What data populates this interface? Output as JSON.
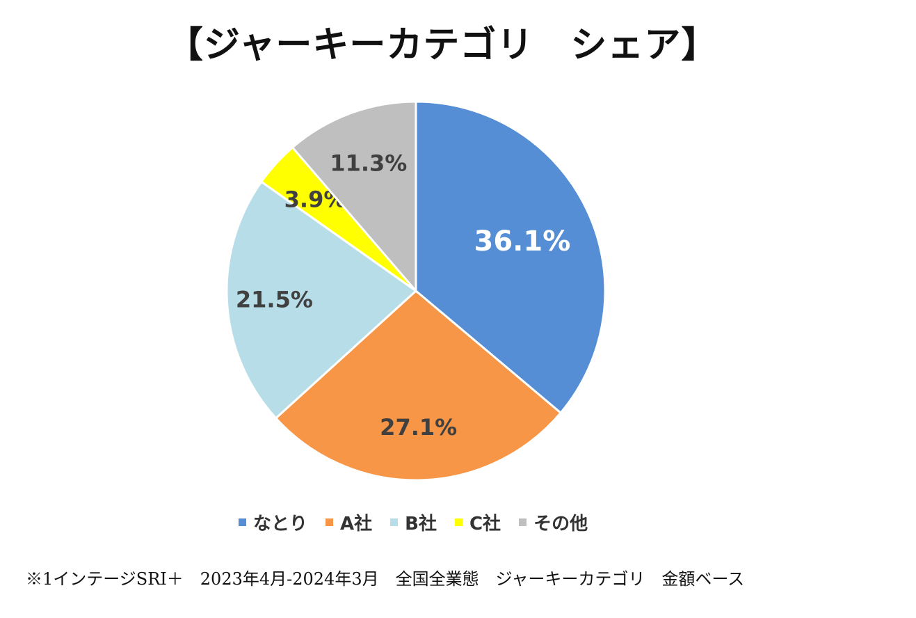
{
  "title": "【ジャーキーカテゴリ　シェア】",
  "footnote": "※1インテージSRI＋　2023年4月-2024年3月　全国全業態　ジャーキーカテゴリ　金額ベース",
  "chart_data": {
    "type": "pie",
    "title": "【ジャーキーカテゴリ　シェア】",
    "unit": "%",
    "slices": [
      {
        "name": "なとり",
        "value": 36.1,
        "label": "36.1%",
        "color": "#558ED5",
        "label_color": "#ffffff"
      },
      {
        "name": "A社",
        "value": 27.1,
        "label": "27.1%",
        "color": "#F79646",
        "label_color": "#404040"
      },
      {
        "name": "B社",
        "value": 21.5,
        "label": "21.5%",
        "color": "#B7DDE8",
        "label_color": "#404040"
      },
      {
        "name": "C社",
        "value": 3.9,
        "label": "3.9%",
        "color": "#FFFF00",
        "label_color": "#404040"
      },
      {
        "name": "その他",
        "value": 11.3,
        "label": "11.3%",
        "color": "#BFBFBF",
        "label_color": "#404040"
      }
    ],
    "start": "12 o'clock",
    "direction": "clockwise",
    "legend_position": "bottom"
  }
}
